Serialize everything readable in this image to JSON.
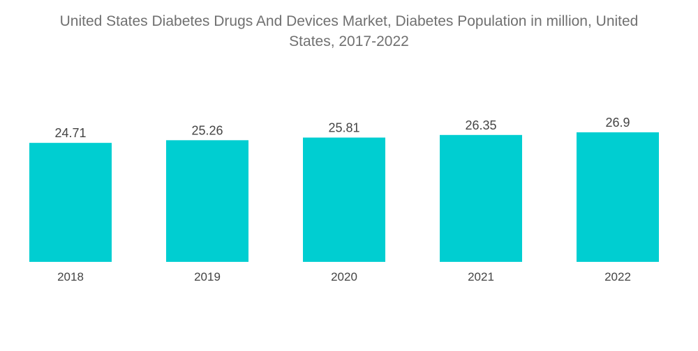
{
  "chart_data": {
    "type": "bar",
    "title_lines": [
      "United States Diabetes Drugs And Devices Market, Diabetes Population in million, United",
      "States, 2017-2022"
    ],
    "categories": [
      "2018",
      "2019",
      "2020",
      "2021",
      "2022"
    ],
    "values": [
      24.71,
      25.26,
      25.81,
      26.35,
      26.9
    ],
    "value_labels": [
      "24.71",
      "25.26",
      "25.81",
      "26.35",
      "26.9"
    ],
    "bar_color": "#00CED1",
    "ylim": [
      0,
      26.9
    ],
    "grid": false,
    "legend": "none"
  }
}
